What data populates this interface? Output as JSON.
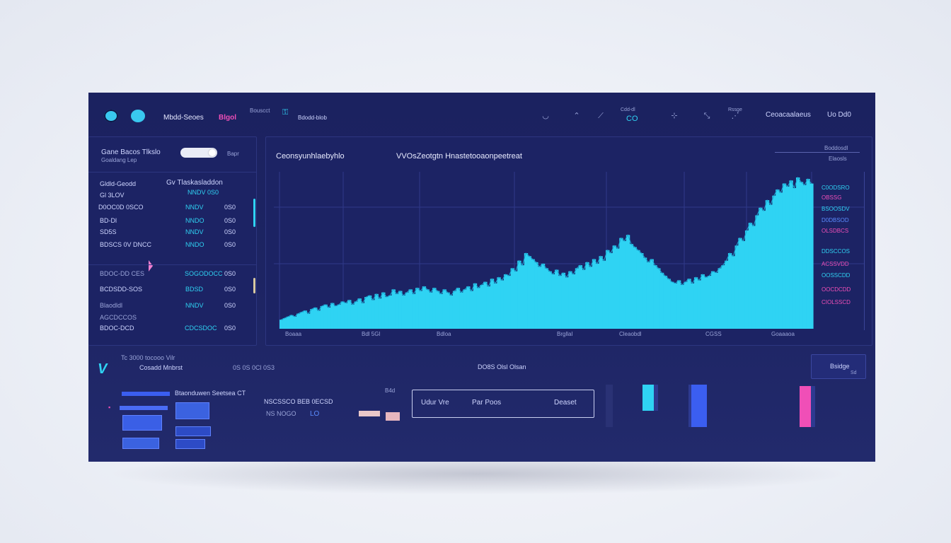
{
  "header": {
    "brand": "Mbdd-Seoes",
    "brand_badge": "Blgol",
    "meta_top": "Bouscct",
    "nav_label": "Bdodd-blob",
    "icons": [
      "user-icon",
      "pin-icon",
      "flag-icon",
      "badge-icon",
      "crosshair-icon",
      "expand-icon",
      "dots-icon"
    ],
    "small_labels": [
      "CO",
      "Cdd-dl",
      "Rssge"
    ],
    "account": "Ceoacaalaeus",
    "account_value": "Uo Dd0"
  },
  "sidebar": {
    "title": "Gane Bacos Tlkslo",
    "subtitle": "Goaldang Lep",
    "toggle_label": "Bapr",
    "group_label": "Gv Tlaskasladdon",
    "group_sub": "NNDV 0S0",
    "rows": [
      {
        "label": "Gldld-Geodd",
        "value": "",
        "num": ""
      },
      {
        "label": "Gl 3LOV",
        "value": "",
        "num": ""
      },
      {
        "label": "D0OC0D 0SCO",
        "value": "NNDV",
        "num": "0S0"
      },
      {
        "label": "BD-Dl",
        "value": "NNDO",
        "num": "0S0"
      },
      {
        "label": "SD5S",
        "value": "NNDV",
        "num": "0S0"
      },
      {
        "label": "BDSCS 0V DNCC",
        "value": "NNDO",
        "num": "0S0"
      },
      {
        "label": "BDOC-DD CES",
        "value": "SOGODOCC",
        "num": "0S0"
      },
      {
        "label": "BCDSDD-SOS",
        "value": "BDSD",
        "num": "0S0"
      },
      {
        "label": "Blaodldl",
        "value": "NNDV",
        "num": "0S0"
      },
      {
        "label": "AGCDCCOS",
        "value": "",
        "num": ""
      },
      {
        "label": "BDOC-DCD",
        "value": "CDCSDOC",
        "num": "0S0"
      }
    ]
  },
  "chart_panel": {
    "title_left": "Ceonsyunhlaebyhlo",
    "title_center": "VVOsZeotgtn Hnastetooaonpeetreat",
    "top_right_label": "Boddosdl",
    "top_right_sub": "Elaosls",
    "right_labels": [
      {
        "text": "C0ODSRO",
        "color": "#2fd3f3"
      },
      {
        "text": "OBSSG",
        "color": "#f04fb7"
      },
      {
        "text": "BSOOSDV",
        "color": "#2fd3f3"
      },
      {
        "text": "D0DBSOD",
        "color": "#5b8bff"
      },
      {
        "text": "OLSDBCS",
        "color": "#f04fb7"
      },
      {
        "text": "DDSCCOS",
        "color": "#2fd3f3"
      },
      {
        "text": "ACSSVDD",
        "color": "#f04fb7"
      },
      {
        "text": "OOSSCDD",
        "color": "#2fd3f3"
      },
      {
        "text": "OOCDCDD",
        "color": "#f04fb7"
      },
      {
        "text": "CIOLSSCD",
        "color": "#f04fb7"
      }
    ],
    "x_tick_labels": [
      "Boaaa",
      "Bdl 5Gl",
      "Bdloa",
      "Brgllal",
      "Cleaobdl",
      "CGSS",
      "Goaaaoa"
    ]
  },
  "chart_data": {
    "type": "bar",
    "colors": {
      "bars": "#2fd3f3",
      "bars_edge": "#1aa9d6",
      "grid": "#2f3a8a"
    },
    "grid": true,
    "values": [
      6,
      7,
      8,
      9,
      8,
      10,
      11,
      12,
      10,
      13,
      14,
      12,
      15,
      16,
      14,
      17,
      15,
      16,
      18,
      17,
      19,
      16,
      18,
      20,
      17,
      21,
      22,
      19,
      23,
      20,
      24,
      21,
      22,
      26,
      23,
      25,
      22,
      24,
      26,
      23,
      27,
      25,
      28,
      26,
      24,
      27,
      25,
      23,
      26,
      24,
      22,
      25,
      27,
      24,
      26,
      28,
      25,
      30,
      27,
      29,
      31,
      28,
      33,
      30,
      34,
      32,
      36,
      35,
      40,
      38,
      45,
      42,
      50,
      48,
      46,
      44,
      41,
      43,
      40,
      38,
      36,
      39,
      35,
      37,
      34,
      38,
      36,
      40,
      42,
      39,
      44,
      41,
      46,
      43,
      48,
      45,
      52,
      50,
      55,
      53,
      60,
      58,
      62,
      56,
      54,
      52,
      50,
      47,
      44,
      46,
      42,
      40,
      37,
      35,
      33,
      31,
      30,
      32,
      29,
      31,
      33,
      30,
      34,
      32,
      36,
      34,
      35,
      38,
      37,
      40,
      42,
      45,
      50,
      48,
      55,
      60,
      58,
      65,
      70,
      68,
      75,
      80,
      78,
      85,
      82,
      88,
      92,
      90,
      96,
      94,
      98,
      93,
      100,
      97,
      95,
      99,
      96
    ],
    "ylim": [
      0,
      100
    ]
  },
  "bottom": {
    "logo_symbol": "V",
    "label_a": "Tc 3000 tocooo Vilr",
    "label_b": "Cosadd Mnbrst",
    "mini_code": "0S 0S 0Cl 0S3",
    "center_label": "DO8S Olsl Olsan",
    "right_button": "Bsidge",
    "right_button_sub": "Sd",
    "list_header": "Btaonduwen Seetsea CT",
    "status_a": "NSCSSCO BEB 0ECSD",
    "status_b": "NS NOGO",
    "status_b_val": "LO",
    "side_label": "B4d",
    "outline_btn_left": "Udur Vre",
    "outline_btn_mid": "Par Poos",
    "outline_btn_right": "Deaset"
  }
}
